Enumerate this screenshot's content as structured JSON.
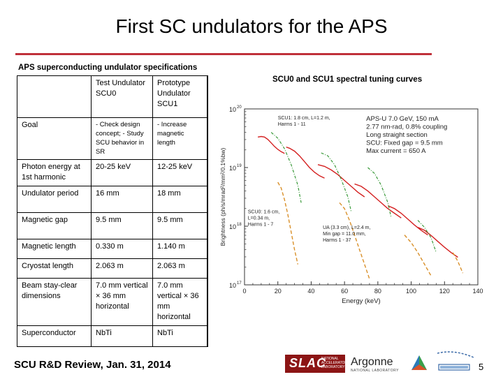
{
  "slide": {
    "title": "First SC undulators for the APS",
    "table_caption": "APS superconducting undulator specifications",
    "chart_caption": "SCU0 and SCU1 spectral tuning curves",
    "footer_prefix": "SCU R&D Review,",
    "footer_date": "Jan. 31, 2014",
    "page_number": "5"
  },
  "table": {
    "header": [
      "",
      "Test Undulator SCU0",
      "Prototype Undulator SCU1"
    ],
    "rows": [
      {
        "label": "Goal",
        "scu0": "- Check design concept; - Study SCU behavior in SR",
        "scu1": "- Increase magnetic length"
      },
      {
        "label": "Photon energy at 1st harmonic",
        "scu0": "20-25 keV",
        "scu1": "12-25 keV"
      },
      {
        "label": "Undulator period",
        "scu0": "16 mm",
        "scu1": "18 mm"
      },
      {
        "label": "Magnetic gap",
        "scu0": "9.5 mm",
        "scu1": "9.5 mm"
      },
      {
        "label": "Magnetic length",
        "scu0": "0.330 m",
        "scu1": "1.140 m"
      },
      {
        "label": "Cryostat length",
        "scu0": "2.063 m",
        "scu1": "2.063 m"
      },
      {
        "label": "Beam stay-clear dimensions",
        "scu0": "7.0 mm vertical × 36 mm horizontal",
        "scu1": "7.0 mm vertical × 36 mm horizontal"
      },
      {
        "label": "Superconductor",
        "scu0": "NbTi",
        "scu1": "NbTi"
      }
    ]
  },
  "logos": {
    "slac": "SLAC",
    "slac_sub": "NATIONAL ACCELERATOR LABORATORY",
    "argonne": "Argonne",
    "argonne_sub": "NATIONAL LABORATORY"
  },
  "colors": {
    "accent_rule": "#c0303a",
    "scu1_curve": "#d42020",
    "scu0_curve": "#d9902a",
    "ua_curve": "#3a9a3a",
    "slac_red": "#8c1515"
  },
  "chart_data": {
    "type": "line",
    "xlabel": "Energy (keV)",
    "ylabel": "Brightness (ph/s/mrad²/mm²/0.1%bw)",
    "xlim": [
      0,
      140
    ],
    "ylim_log10": [
      17,
      20
    ],
    "x_ticks": [
      0,
      20,
      40,
      60,
      80,
      100,
      120,
      140
    ],
    "y_ticks": [
      {
        "value": 17,
        "label": "10"
      },
      {
        "value": 18,
        "label": "10"
      },
      {
        "value": 19,
        "label": "10"
      },
      {
        "value": 20,
        "label": "10"
      }
    ],
    "y_tick_exponents": [
      "17",
      "18",
      "19",
      "20"
    ],
    "info_lines": [
      "APS-U 7.0 GeV, 150 mA",
      "2.77 nm-rad, 0.8% coupling",
      "Long straight section",
      "SCU: Fixed gap = 9.5 mm",
      "Max current = 650 A"
    ],
    "series": [
      {
        "name": "SCU1: 1.8 cm, L=1.2 m, Harms 1 - 11",
        "label_lines": [
          "SCU1: 1.8 cm, L=1.2 m,",
          "Harms 1 - 11"
        ],
        "style": "solid",
        "segments": [
          [
            [
              8,
              19.52
            ],
            [
              10,
              19.53
            ],
            [
              12,
              19.52
            ],
            [
              14,
              19.48
            ],
            [
              16,
              19.42
            ],
            [
              18,
              19.36
            ],
            [
              20,
              19.31
            ],
            [
              22,
              19.27
            ],
            [
              24,
              19.24
            ]
          ],
          [
            [
              25,
              19.35
            ],
            [
              27,
              19.33
            ],
            [
              30,
              19.28
            ],
            [
              33,
              19.2
            ],
            [
              36,
              19.1
            ],
            [
              39,
              19.0
            ],
            [
              42,
              18.92
            ],
            [
              45,
              18.86
            ],
            [
              48,
              18.82
            ]
          ],
          [
            [
              44,
              19.05
            ],
            [
              48,
              19.02
            ],
            [
              52,
              18.96
            ],
            [
              56,
              18.88
            ],
            [
              60,
              18.78
            ],
            [
              64,
              18.68
            ],
            [
              68,
              18.58
            ],
            [
              72,
              18.5
            ]
          ],
          [
            [
              66,
              18.72
            ],
            [
              70,
              18.68
            ],
            [
              74,
              18.6
            ],
            [
              78,
              18.5
            ],
            [
              82,
              18.4
            ],
            [
              86,
              18.3
            ],
            [
              90,
              18.22
            ],
            [
              94,
              18.14
            ]
          ],
          [
            [
              86,
              18.35
            ],
            [
              90,
              18.3
            ],
            [
              94,
              18.22
            ],
            [
              98,
              18.12
            ],
            [
              102,
              18.02
            ],
            [
              106,
              17.93
            ],
            [
              110,
              17.85
            ]
          ],
          [
            [
              104,
              17.98
            ],
            [
              108,
              17.93
            ],
            [
              112,
              17.84
            ],
            [
              116,
              17.74
            ],
            [
              120,
              17.64
            ],
            [
              124,
              17.55
            ],
            [
              128,
              17.47
            ]
          ]
        ]
      },
      {
        "name": "SCU0: 1.6 cm, L=0.34 m, Harms 1 - 7",
        "label_lines": [
          "SCU0: 1.6 cm,",
          "L=0.34 m,",
          "Harms 1 - 7"
        ],
        "style": "dashed",
        "segments": [
          [
            [
              20,
              18.75
            ],
            [
              22,
              18.65
            ],
            [
              24,
              18.45
            ],
            [
              26,
              18.2
            ],
            [
              28,
              17.9
            ],
            [
              30,
              17.6
            ],
            [
              32,
              17.35
            ]
          ],
          [
            [
              57,
              18.4
            ],
            [
              60,
              18.3
            ],
            [
              63,
              18.1
            ],
            [
              66,
              17.85
            ],
            [
              69,
              17.6
            ],
            [
              72,
              17.35
            ],
            [
              75,
              17.1
            ]
          ],
          [
            [
              96,
              17.85
            ],
            [
              100,
              17.72
            ],
            [
              104,
              17.55
            ],
            [
              108,
              17.35
            ],
            [
              112,
              17.15
            ]
          ],
          [
            [
              125,
              17.55
            ],
            [
              128,
              17.4
            ],
            [
              131,
              17.2
            ]
          ]
        ]
      },
      {
        "name": "UA (3.3 cm), L=2.4 m, Min gap = 11.0 mm, Harms 1 - 37",
        "label_lines": [
          "UA (3.3 cm), L=2.4 m,",
          "Min gap = 11.0 mm,",
          "Harms 1 - 37"
        ],
        "style": "dash-dot",
        "segments": [
          [
            [
              16,
              19.6
            ],
            [
              20,
              19.5
            ],
            [
              24,
              19.32
            ],
            [
              28,
              19.05
            ],
            [
              32,
              18.7
            ],
            [
              34,
              18.4
            ]
          ],
          [
            [
              46,
              19.25
            ],
            [
              50,
              19.2
            ],
            [
              54,
              19.05
            ],
            [
              58,
              18.8
            ],
            [
              62,
              18.5
            ],
            [
              64,
              18.25
            ]
          ],
          [
            [
              74,
              19.0
            ],
            [
              78,
              18.9
            ],
            [
              82,
              18.7
            ],
            [
              86,
              18.4
            ],
            [
              88,
              18.15
            ]
          ],
          [
            [
              104,
              18.1
            ],
            [
              108,
              17.98
            ],
            [
              112,
              17.8
            ],
            [
              115,
              17.55
            ]
          ]
        ]
      }
    ]
  }
}
